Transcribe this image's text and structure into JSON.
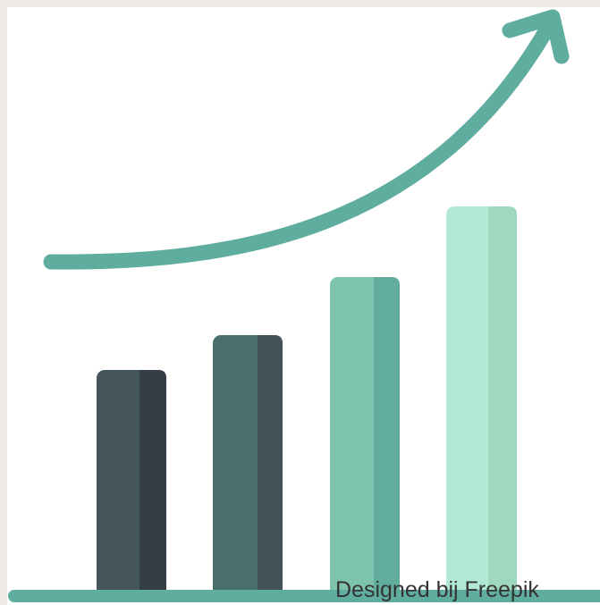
{
  "attribution": "Designed bij Freepik"
}
